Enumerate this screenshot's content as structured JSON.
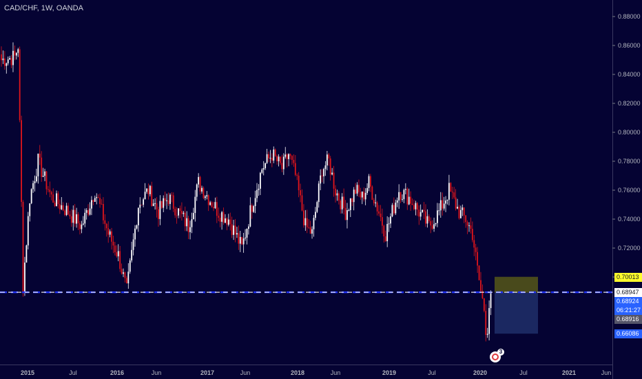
{
  "chart_data": {
    "type": "candlestick",
    "title": "CAD/CHF, 1W, OANDA",
    "y_ticks": [
      "0.88000",
      "0.86000",
      "0.84000",
      "0.82000",
      "0.80000",
      "0.78000",
      "0.76000",
      "0.74000",
      "0.72000",
      "0.70000"
    ],
    "x_ticks": [
      "2015",
      "Jul",
      "2016",
      "Jun",
      "2017",
      "Jun",
      "2018",
      "Jun",
      "2019",
      "Jul",
      "2020",
      "Jul",
      "2021",
      "Jun"
    ],
    "ylim": [
      0.648,
      0.89
    ],
    "price_labels": [
      {
        "text": "0.70013",
        "role": "target"
      },
      {
        "text": "0.68947",
        "role": "horizontal-line"
      },
      {
        "text": "0.68924",
        "role": "entry"
      },
      {
        "text": "06:21:27",
        "role": "countdown"
      },
      {
        "text": "0.68916",
        "role": "last-price"
      },
      {
        "text": "0.66086",
        "role": "stop"
      }
    ],
    "horizontal_line": 0.68947,
    "anchors": [
      [
        0,
        0.85
      ],
      [
        8,
        0.852
      ],
      [
        10,
        0.86
      ],
      [
        13,
        0.695
      ],
      [
        17,
        0.755
      ],
      [
        22,
        0.78
      ],
      [
        30,
        0.755
      ],
      [
        40,
        0.745
      ],
      [
        48,
        0.735
      ],
      [
        56,
        0.76
      ],
      [
        60,
        0.745
      ],
      [
        64,
        0.73
      ],
      [
        70,
        0.715
      ],
      [
        75,
        0.69
      ],
      [
        82,
        0.75
      ],
      [
        88,
        0.76
      ],
      [
        94,
        0.745
      ],
      [
        100,
        0.755
      ],
      [
        106,
        0.745
      ],
      [
        112,
        0.735
      ],
      [
        118,
        0.765
      ],
      [
        124,
        0.755
      ],
      [
        130,
        0.745
      ],
      [
        136,
        0.74
      ],
      [
        144,
        0.72
      ],
      [
        150,
        0.75
      ],
      [
        156,
        0.775
      ],
      [
        162,
        0.785
      ],
      [
        168,
        0.775
      ],
      [
        172,
        0.785
      ],
      [
        176,
        0.77
      ],
      [
        182,
        0.735
      ],
      [
        186,
        0.73
      ],
      [
        192,
        0.775
      ],
      [
        196,
        0.78
      ],
      [
        200,
        0.76
      ],
      [
        206,
        0.745
      ],
      [
        212,
        0.76
      ],
      [
        216,
        0.755
      ],
      [
        220,
        0.765
      ],
      [
        226,
        0.745
      ],
      [
        230,
        0.73
      ],
      [
        234,
        0.745
      ],
      [
        238,
        0.76
      ],
      [
        244,
        0.755
      ],
      [
        250,
        0.745
      ],
      [
        256,
        0.735
      ],
      [
        262,
        0.745
      ],
      [
        268,
        0.76
      ],
      [
        274,
        0.745
      ],
      [
        278,
        0.74
      ],
      [
        282,
        0.73
      ],
      [
        285,
        0.705
      ],
      [
        287,
        0.69
      ],
      [
        289,
        0.678
      ],
      [
        290,
        0.665
      ],
      [
        291,
        0.665
      ],
      [
        292,
        0.68
      ],
      [
        293,
        0.6892
      ]
    ],
    "tradebox": {
      "entry": 0.68924,
      "target": 0.70013,
      "stop": 0.66086
    },
    "colors": {
      "up": "#ffffff",
      "down": "#e0151b",
      "background": "#050333",
      "target_zone": "#51521a",
      "stop_zone": "#1c2a64",
      "line": "#ffffff",
      "blue_line": "#2234f5",
      "price_axis": "#787b86"
    }
  },
  "logo_badge": "3"
}
